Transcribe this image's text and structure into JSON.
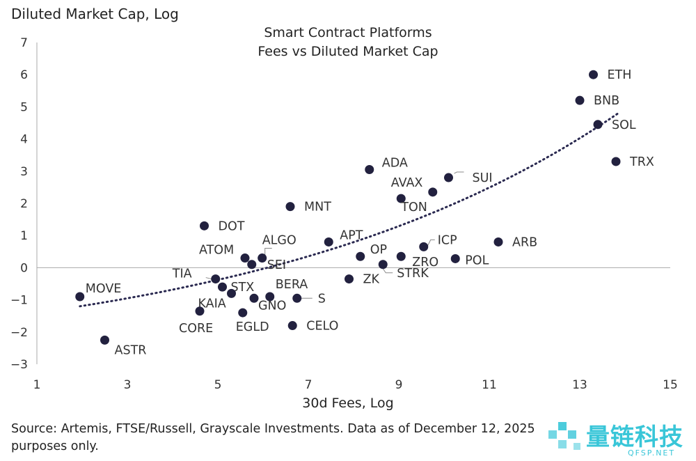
{
  "chart_data": {
    "type": "scatter",
    "title": "Smart Contract Platforms",
    "subtitle": "Fees vs Diluted Market Cap",
    "xlabel": "30d Fees, Log",
    "ylabel": "Diluted Market Cap, Log",
    "xlim": [
      1,
      15
    ],
    "ylim": [
      -3,
      7
    ],
    "xticks": [
      1,
      3,
      5,
      7,
      9,
      11,
      13,
      15
    ],
    "yticks": [
      -3,
      -2,
      -1,
      0,
      1,
      2,
      3,
      4,
      5,
      6,
      7
    ],
    "points": [
      {
        "label": "ETH",
        "x": 13.3,
        "y": 6.0
      },
      {
        "label": "BNB",
        "x": 13.0,
        "y": 5.2
      },
      {
        "label": "SOL",
        "x": 13.4,
        "y": 4.45
      },
      {
        "label": "TRX",
        "x": 13.8,
        "y": 3.3
      },
      {
        "label": "SUI",
        "x": 10.1,
        "y": 2.8
      },
      {
        "label": "ADA",
        "x": 8.35,
        "y": 3.05
      },
      {
        "label": "AVAX",
        "x": 9.75,
        "y": 2.35
      },
      {
        "label": "TON",
        "x": 9.05,
        "y": 2.15
      },
      {
        "label": "MNT",
        "x": 6.6,
        "y": 1.9
      },
      {
        "label": "DOT",
        "x": 4.7,
        "y": 1.3
      },
      {
        "label": "APT",
        "x": 7.45,
        "y": 0.8
      },
      {
        "label": "ARB",
        "x": 11.2,
        "y": 0.8
      },
      {
        "label": "ICP",
        "x": 9.55,
        "y": 0.65
      },
      {
        "label": "ATOM",
        "x": 5.6,
        "y": 0.3
      },
      {
        "label": "ALGO",
        "x": 5.98,
        "y": 0.3
      },
      {
        "label": "SEI",
        "x": 5.75,
        "y": 0.1
      },
      {
        "label": "OP",
        "x": 8.15,
        "y": 0.35
      },
      {
        "label": "ZRO",
        "x": 9.05,
        "y": 0.35
      },
      {
        "label": "POL",
        "x": 10.25,
        "y": 0.28
      },
      {
        "label": "STRK",
        "x": 8.65,
        "y": 0.1
      },
      {
        "label": "ZK",
        "x": 7.9,
        "y": -0.35
      },
      {
        "label": "TIA",
        "x": 4.95,
        "y": -0.35
      },
      {
        "label": "STX",
        "x": 5.1,
        "y": -0.6
      },
      {
        "label": "KAIA",
        "x": 5.3,
        "y": -0.8
      },
      {
        "label": "BERA",
        "x": 6.15,
        "y": -0.9
      },
      {
        "label": "S",
        "x": 6.75,
        "y": -0.95
      },
      {
        "label": "GNO",
        "x": 5.8,
        "y": -0.95
      },
      {
        "label": "CORE",
        "x": 4.6,
        "y": -1.35
      },
      {
        "label": "EGLD",
        "x": 5.55,
        "y": -1.4
      },
      {
        "label": "CELO",
        "x": 6.65,
        "y": -1.8
      },
      {
        "label": "MOVE",
        "x": 1.95,
        "y": -0.9
      },
      {
        "label": "ASTR",
        "x": 2.5,
        "y": -2.25
      }
    ],
    "trendline": {
      "style": "dotted",
      "type": "exponential",
      "x_range": [
        1.95,
        13.85
      ],
      "y_start": -1.2,
      "y_end": 4.8
    },
    "grid": false,
    "legend": "none",
    "colors": {
      "point": "#22213f",
      "trend": "#2a2950",
      "axis": "#aaaaaa",
      "leader": "#888888"
    }
  },
  "source_text": "Source: Artemis, FTSE/Russell, Grayscale Investments. Data as of December 12, 2025",
  "source_text_2": "purposes only.",
  "watermark": {
    "text": "量链科技",
    "sub": "QFSP.NET"
  }
}
